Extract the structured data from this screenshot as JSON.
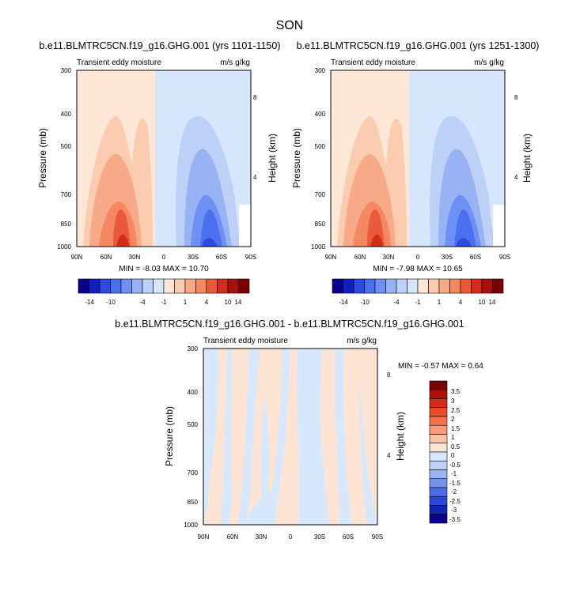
{
  "figure": {
    "season": "SON",
    "diff_title": "b.e11.BLMTRC5CN.f19_g16.GHG.001 - b.e11.BLMTRC5CN.f19_g16.GHG.001"
  },
  "panels": [
    {
      "title": "b.e11.BLMTRC5CN.f19_g16.GHG.001 (yrs 1101-1150)",
      "left_label": "Transient eddy moisture",
      "right_label": "m/s g/kg",
      "minmax": "MIN = -8.03   MAX = 10.70"
    },
    {
      "title": "b.e11.BLMTRC5CN.f19_g16.GHG.001 (yrs 1251-1300)",
      "left_label": "Transient eddy moisture",
      "right_label": "m/s g/kg",
      "minmax": "MIN = -7.98   MAX = 10.65"
    },
    {
      "left_label": "Transient eddy moisture",
      "right_label": "m/s g/kg",
      "minmax": "MIN =  -0.57   MAX =   0.64"
    }
  ],
  "axes": {
    "ylabel": "Pressure (mb)",
    "y2label": "Height (km)",
    "pressure_ticks": [
      "300",
      "400",
      "500",
      "700",
      "850",
      "1000"
    ],
    "height_ticks": [
      "8",
      "4"
    ],
    "lat_ticks": [
      "90N",
      "60N",
      "30N",
      "0",
      "30S",
      "60S",
      "90S"
    ]
  },
  "labelbar_top": {
    "labels": [
      "-14",
      "-10",
      "-4",
      "-1",
      "1",
      "4",
      "10",
      "14"
    ],
    "colors": [
      "#08008a",
      "#1020c0",
      "#2a4ae0",
      "#4a70f0",
      "#6e90f4",
      "#98b2f4",
      "#bcd0f8",
      "#d6e6fc",
      "#fde8d8",
      "#fcccb0",
      "#f8aa88",
      "#f48862",
      "#ea5a3a",
      "#d42c1c",
      "#a8100c",
      "#7a0000"
    ]
  },
  "labelbar_diff": {
    "labels": [
      "3.5",
      "3",
      "2.5",
      "2",
      "1.5",
      "1",
      "0.5",
      "0",
      "-0.5",
      "-1",
      "-1.5",
      "-2",
      "-2.5",
      "-3",
      "-3.5"
    ],
    "colors": [
      "#7a0000",
      "#b01008",
      "#d82a18",
      "#ec4a2a",
      "#f47250",
      "#f89a78",
      "#fcc0a4",
      "#fde4d4",
      "#d8e8fc",
      "#bcd0f8",
      "#9ab4f4",
      "#7494f0",
      "#4a6ee8",
      "#2a48d8",
      "#1422b0",
      "#08008a"
    ]
  },
  "chart_data": [
    {
      "type": "heatmap",
      "title": "b.e11.BLMTRC5CN.f19_g16.GHG.001 (yrs 1101-1150)",
      "field": "Transient eddy moisture",
      "units": "m/s g/kg",
      "xlabel": "",
      "ylabel": "Pressure (mb)",
      "y2label": "Height (km)",
      "x_ticks": [
        "90N",
        "60N",
        "30N",
        "0",
        "30S",
        "60S",
        "90S"
      ],
      "y_ticks": [
        300,
        400,
        500,
        700,
        850,
        1000
      ],
      "y_scale": "log",
      "min": -8.03,
      "max": 10.7,
      "contour_levels": [
        -14,
        -12,
        -10,
        -8,
        -6,
        -4,
        -2,
        -1,
        0,
        1,
        2,
        4,
        6,
        8,
        10,
        12,
        14
      ]
    },
    {
      "type": "heatmap",
      "title": "b.e11.BLMTRC5CN.f19_g16.GHG.001 (yrs 1251-1300)",
      "field": "Transient eddy moisture",
      "units": "m/s g/kg",
      "xlabel": "",
      "ylabel": "Pressure (mb)",
      "y2label": "Height (km)",
      "x_ticks": [
        "90N",
        "60N",
        "30N",
        "0",
        "30S",
        "60S",
        "90S"
      ],
      "y_ticks": [
        300,
        400,
        500,
        700,
        850,
        1000
      ],
      "y_scale": "log",
      "min": -7.98,
      "max": 10.65,
      "contour_levels": [
        -14,
        -12,
        -10,
        -8,
        -6,
        -4,
        -2,
        -1,
        0,
        1,
        2,
        4,
        6,
        8,
        10,
        12,
        14
      ]
    },
    {
      "type": "heatmap",
      "title": "b.e11.BLMTRC5CN.f19_g16.GHG.001 - b.e11.BLMTRC5CN.f19_g16.GHG.001",
      "field": "Transient eddy moisture",
      "units": "m/s g/kg",
      "xlabel": "",
      "ylabel": "Pressure (mb)",
      "y2label": "Height (km)",
      "x_ticks": [
        "90N",
        "60N",
        "30N",
        "0",
        "30S",
        "60S",
        "90S"
      ],
      "y_ticks": [
        300,
        400,
        500,
        700,
        850,
        1000
      ],
      "y_scale": "log",
      "min": -0.57,
      "max": 0.64,
      "contour_levels": [
        -3.5,
        -3,
        -2.5,
        -2,
        -1.5,
        -1,
        -0.5,
        0,
        0.5,
        1,
        1.5,
        2,
        2.5,
        3,
        3.5
      ]
    }
  ]
}
